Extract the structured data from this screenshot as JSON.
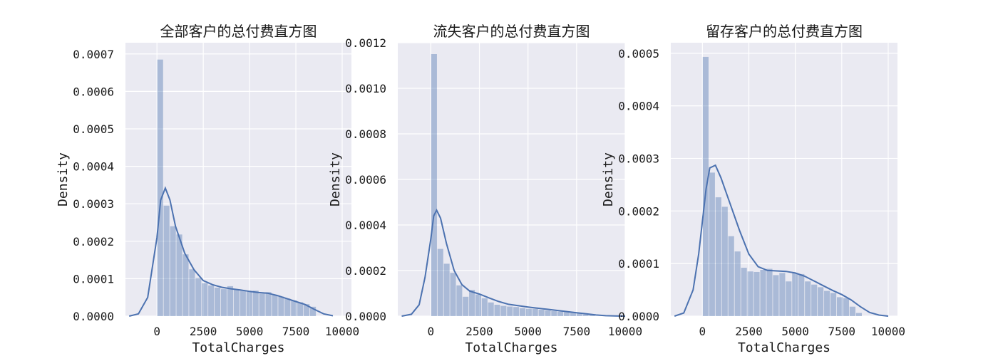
{
  "page": {
    "background": "#ffffff"
  },
  "style": {
    "plot_bg": "#eaeaf2",
    "grid": "#ffffff",
    "bar_fill": "#4c72b0",
    "bar_opacity": 0.4,
    "kde_color": "#4c72b0"
  },
  "chart_data": [
    {
      "type": "histogram_kde",
      "title": "全部客户的总付费直方图",
      "xlabel": "TotalCharges",
      "ylabel": "Density",
      "xlim": [
        -1700,
        10500
      ],
      "ylim": [
        0,
        0.00073
      ],
      "xticks": [
        0,
        2500,
        5000,
        7500,
        10000
      ],
      "xtick_labels": [
        "0",
        "2500",
        "5000",
        "7500",
        "10000"
      ],
      "yticks": [
        0,
        0.0001,
        0.0002,
        0.0003,
        0.0004,
        0.0005,
        0.0006,
        0.0007
      ],
      "ytick_labels": [
        "0.0000",
        "0.0001",
        "0.0002",
        "0.0003",
        "0.0004",
        "0.0005",
        "0.0006",
        "0.0007"
      ],
      "grid": true,
      "bins": {
        "edges": [
          19,
          362.7,
          706.4,
          1050.1,
          1393.8,
          1737.5,
          2081.2,
          2424.9,
          2768.6,
          3112.3,
          3456,
          3799.7,
          4143.4,
          4487.1,
          4830.8,
          5174.5,
          5518.2,
          5861.9,
          6205.6,
          6549.3,
          6893,
          7236.7,
          7580.4,
          7924.1,
          8267.8,
          8611.5
        ],
        "densities": [
          0.000685,
          0.000295,
          0.00024,
          0.000218,
          0.000165,
          0.000125,
          0.000102,
          8.8e-05,
          8.2e-05,
          7.6e-05,
          7.2e-05,
          8e-05,
          7.1e-05,
          6.8e-05,
          6.5e-05,
          6.8e-05,
          6e-05,
          6.4e-05,
          5.6e-05,
          5.2e-05,
          4.7e-05,
          4.2e-05,
          3.7e-05,
          3.2e-05,
          2.5e-05
        ]
      },
      "kde": {
        "x": [
          -1500,
          -1000,
          -500,
          0,
          200,
          450,
          700,
          1000,
          1500,
          2000,
          2500,
          3000,
          3500,
          4000,
          4500,
          5000,
          5500,
          6000,
          6500,
          7000,
          7500,
          8000,
          8500,
          9000,
          9500
        ],
        "y": [
          0,
          6e-06,
          5e-05,
          0.00021,
          0.00031,
          0.000342,
          0.00031,
          0.00024,
          0.000168,
          0.000124,
          9.5e-05,
          8.4e-05,
          7.7e-05,
          7.3e-05,
          7e-05,
          6.6e-05,
          6.3e-05,
          6.1e-05,
          5.5e-05,
          4.7e-05,
          3.9e-05,
          3.1e-05,
          1.8e-05,
          6e-06,
          1e-06
        ]
      }
    },
    {
      "type": "histogram_kde",
      "title": "流失客户的总付费直方图",
      "xlabel": "TotalCharges",
      "ylabel": "Density",
      "xlim": [
        -1700,
        10000
      ],
      "ylim": [
        0,
        0.0012
      ],
      "xticks": [
        0,
        2500,
        5000,
        7500,
        10000
      ],
      "xtick_labels": [
        "0",
        "2500",
        "5000",
        "7500",
        "10000"
      ],
      "yticks": [
        0,
        0.0002,
        0.0004,
        0.0006,
        0.0008,
        0.001,
        0.0012
      ],
      "ytick_labels": [
        "0.0000",
        "0.0002",
        "0.0004",
        "0.0006",
        "0.0008",
        "0.0010",
        "0.0012"
      ],
      "grid": true,
      "bins": {
        "edges": [
          19,
          344.1,
          669.2,
          994.3,
          1319.4,
          1644.5,
          1969.6,
          2294.7,
          2619.8,
          2944.9,
          3270,
          3595.1,
          3920.2,
          4245.3,
          4570.4,
          4895.5,
          5220.6,
          5545.7,
          5870.8,
          6195.9,
          6521,
          6846.1,
          7171.2,
          7496.3,
          7821.4,
          8146.5,
          8471.6
        ],
        "densities": [
          0.00115,
          0.000295,
          0.00023,
          0.00019,
          0.000135,
          8.5e-05,
          0.000115,
          9.5e-05,
          7.8e-05,
          6e-05,
          5e-05,
          4.5e-05,
          4.2e-05,
          4e-05,
          3.5e-05,
          3.2e-05,
          3.2e-05,
          2.8e-05,
          2.5e-05,
          2.2e-05,
          2e-05,
          1.8e-05,
          1.5e-05,
          1.2e-05,
          8e-06,
          5e-06,
          3e-06
        ]
      },
      "kde": {
        "x": [
          -1500,
          -1000,
          -600,
          -300,
          0,
          150,
          300,
          500,
          800,
          1200,
          1600,
          2000,
          2500,
          3000,
          3500,
          4000,
          5000,
          6000,
          7000,
          7500,
          8000,
          8500,
          9000,
          9500,
          10000
        ],
        "y": [
          0,
          8e-06,
          5e-05,
          0.00017,
          0.00034,
          0.00044,
          0.000465,
          0.00043,
          0.00032,
          0.0002,
          0.000138,
          0.00011,
          9.7e-05,
          8e-05,
          6.4e-05,
          5.2e-05,
          4e-05,
          3e-05,
          2e-05,
          1.5e-05,
          1e-05,
          5e-06,
          2e-06,
          1e-06,
          0
        ]
      }
    },
    {
      "type": "histogram_kde",
      "title": "留存客户的总付费直方图",
      "xlabel": "TotalCharges",
      "ylabel": "Density",
      "xlim": [
        -1700,
        10500
      ],
      "ylim": [
        0,
        0.00052
      ],
      "xticks": [
        0,
        2500,
        5000,
        7500,
        10000
      ],
      "xtick_labels": [
        "0",
        "2500",
        "5000",
        "7500",
        "10000"
      ],
      "yticks": [
        0,
        0.0001,
        0.0002,
        0.0003,
        0.0004,
        0.0005
      ],
      "ytick_labels": [
        "0.0000",
        "0.0001",
        "0.0002",
        "0.0003",
        "0.0004",
        "0.0005"
      ],
      "grid": true,
      "bins": {
        "edges": [
          19,
          362.7,
          706.4,
          1050.1,
          1393.8,
          1737.5,
          2081.2,
          2424.9,
          2768.6,
          3112.3,
          3456,
          3799.7,
          4143.4,
          4487.1,
          4830.8,
          5174.5,
          5518.2,
          5861.9,
          6205.6,
          6549.3,
          6893,
          7236.7,
          7580.4,
          7924.1,
          8267.8,
          8611.5
        ],
        "densities": [
          0.000493,
          0.000273,
          0.000226,
          0.000208,
          0.000152,
          0.000123,
          9.2e-05,
          8.5e-05,
          8.4e-05,
          8.8e-05,
          9e-05,
          7.8e-05,
          8.2e-05,
          6.6e-05,
          8.2e-05,
          8e-05,
          6.6e-05,
          6e-05,
          5.5e-05,
          4.8e-05,
          4.4e-05,
          3.6e-05,
          3.4e-05,
          1.8e-05,
          6e-06
        ]
      },
      "kde": {
        "x": [
          -1500,
          -1000,
          -500,
          -200,
          0,
          200,
          400,
          700,
          1000,
          1500,
          2000,
          2500,
          3000,
          3500,
          4000,
          4500,
          5000,
          5500,
          6000,
          6500,
          7000,
          7500,
          8000,
          8500,
          9000,
          9500,
          10000
        ],
        "y": [
          0,
          6e-06,
          5e-05,
          0.000118,
          0.00018,
          0.000242,
          0.000282,
          0.000287,
          0.000263,
          0.000213,
          0.000163,
          0.000118,
          9.4e-05,
          8.7e-05,
          8.6e-05,
          8.5e-05,
          8.2e-05,
          7.6e-05,
          6.7e-05,
          5.8e-05,
          4.9e-05,
          4.1e-05,
          3.1e-05,
          1.8e-05,
          7e-06,
          2e-06,
          0
        ]
      }
    }
  ]
}
